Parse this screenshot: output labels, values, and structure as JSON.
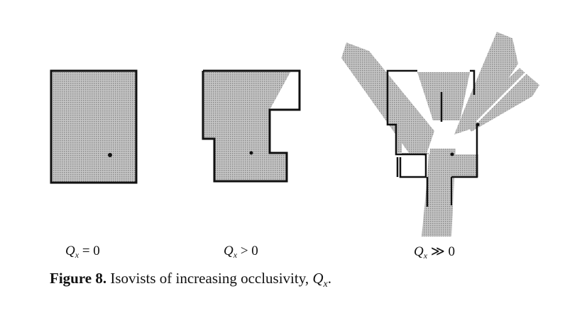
{
  "figure": {
    "panels": [
      {
        "symbol": "Q",
        "subscript": "x",
        "relation": " = 0"
      },
      {
        "symbol": "Q",
        "subscript": "x",
        "relation": " > 0"
      },
      {
        "symbol": "Q",
        "subscript": "x",
        "relation": " ≫ 0"
      }
    ],
    "caption": {
      "number": "Figure 8.",
      "text": "Isovists of increasing occlusivity, ",
      "symbol": "Q",
      "subscript": "x",
      "end": "."
    },
    "colors": {
      "ink": "#111111",
      "shade": "#b9b9b9",
      "paper": "#ffffff"
    }
  }
}
